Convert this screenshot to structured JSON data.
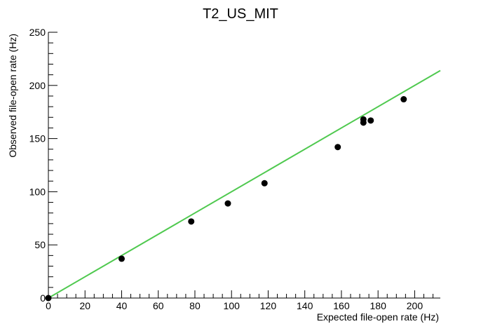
{
  "chart_data": {
    "type": "scatter",
    "title": "T2_US_MIT",
    "xlabel": "Expected file-open rate (Hz)",
    "ylabel": "Observed file-open rate (Hz)",
    "xlim": [
      0,
      214
    ],
    "ylim": [
      0,
      250
    ],
    "grid": false,
    "x_ticks": [
      0,
      20,
      40,
      60,
      80,
      100,
      120,
      140,
      160,
      180,
      200
    ],
    "y_ticks": [
      0,
      50,
      100,
      150,
      200,
      250
    ],
    "series": [
      {
        "color": "#000000",
        "points": [
          {
            "x": 0,
            "y": 0
          },
          {
            "x": 40,
            "y": 37
          },
          {
            "x": 78,
            "y": 72
          },
          {
            "x": 98,
            "y": 89
          },
          {
            "x": 118,
            "y": 108
          },
          {
            "x": 158,
            "y": 142
          },
          {
            "x": 172,
            "y": 165
          },
          {
            "x": 172,
            "y": 168
          },
          {
            "x": 176,
            "y": 167
          },
          {
            "x": 194,
            "y": 187
          }
        ]
      }
    ],
    "reference_line": {
      "color": "#4fc94f",
      "points": [
        [
          0,
          0
        ],
        [
          214,
          214
        ]
      ]
    }
  }
}
